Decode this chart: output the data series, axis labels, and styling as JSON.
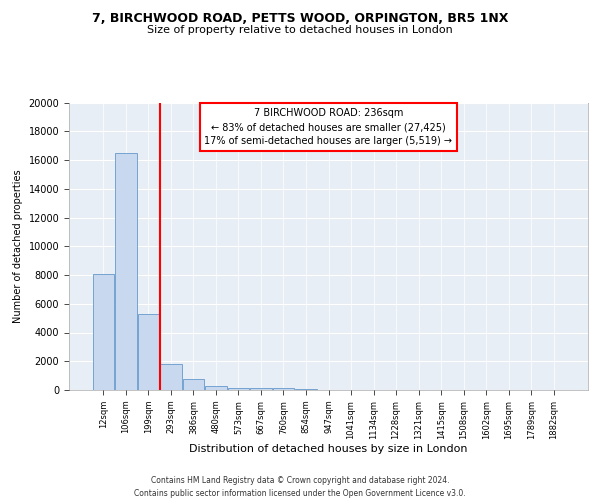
{
  "title1": "7, BIRCHWOOD ROAD, PETTS WOOD, ORPINGTON, BR5 1NX",
  "title2": "Size of property relative to detached houses in London",
  "xlabel": "Distribution of detached houses by size in London",
  "ylabel": "Number of detached properties",
  "footnote1": "Contains HM Land Registry data © Crown copyright and database right 2024.",
  "footnote2": "Contains public sector information licensed under the Open Government Licence v3.0.",
  "annotation_line1": "7 BIRCHWOOD ROAD: 236sqm",
  "annotation_line2": "← 83% of detached houses are smaller (27,425)",
  "annotation_line3": "17% of semi-detached houses are larger (5,519) →",
  "bar_labels": [
    "12sqm",
    "106sqm",
    "199sqm",
    "293sqm",
    "386sqm",
    "480sqm",
    "573sqm",
    "667sqm",
    "760sqm",
    "854sqm",
    "947sqm",
    "1041sqm",
    "1134sqm",
    "1228sqm",
    "1321sqm",
    "1415sqm",
    "1508sqm",
    "1602sqm",
    "1695sqm",
    "1789sqm",
    "1882sqm"
  ],
  "bar_values": [
    8100,
    16500,
    5300,
    1800,
    750,
    300,
    150,
    150,
    150,
    50,
    30,
    20,
    10,
    8,
    5,
    4,
    3,
    2,
    2,
    1,
    1
  ],
  "bar_color": "#c8d8ee",
  "bar_edge_color": "#6699cc",
  "red_line_x": 2.5,
  "red_line_color": "red",
  "ylim": [
    0,
    20000
  ],
  "yticks": [
    0,
    2000,
    4000,
    6000,
    8000,
    10000,
    12000,
    14000,
    16000,
    18000,
    20000
  ],
  "background_color": "#e8eef5",
  "grid_color": "#ffffff",
  "annotation_box_facecolor": "white",
  "annotation_box_edgecolor": "red",
  "title1_fontsize": 9,
  "title2_fontsize": 8,
  "ylabel_fontsize": 7,
  "xlabel_fontsize": 8,
  "ytick_fontsize": 7,
  "xtick_fontsize": 6,
  "footnote_fontsize": 5.5
}
